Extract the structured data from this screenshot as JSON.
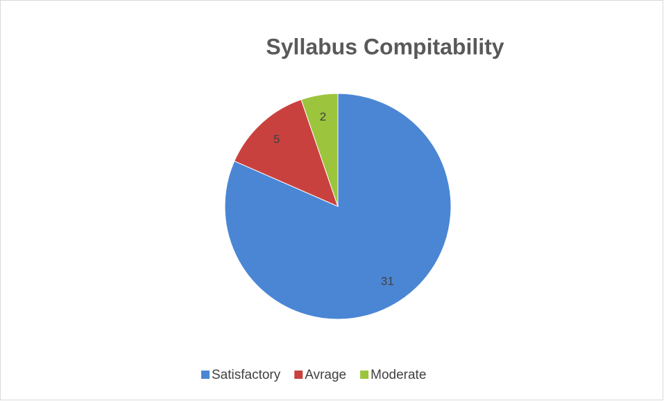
{
  "chart_data": {
    "type": "pie",
    "title": "Syllabus Compitability",
    "categories": [
      "Satisfactory",
      "Avrage",
      "Moderate"
    ],
    "values": [
      31,
      5,
      2
    ],
    "colors": [
      "#4a86d4",
      "#c9413e",
      "#9cc43c"
    ],
    "legend": "bottom"
  }
}
